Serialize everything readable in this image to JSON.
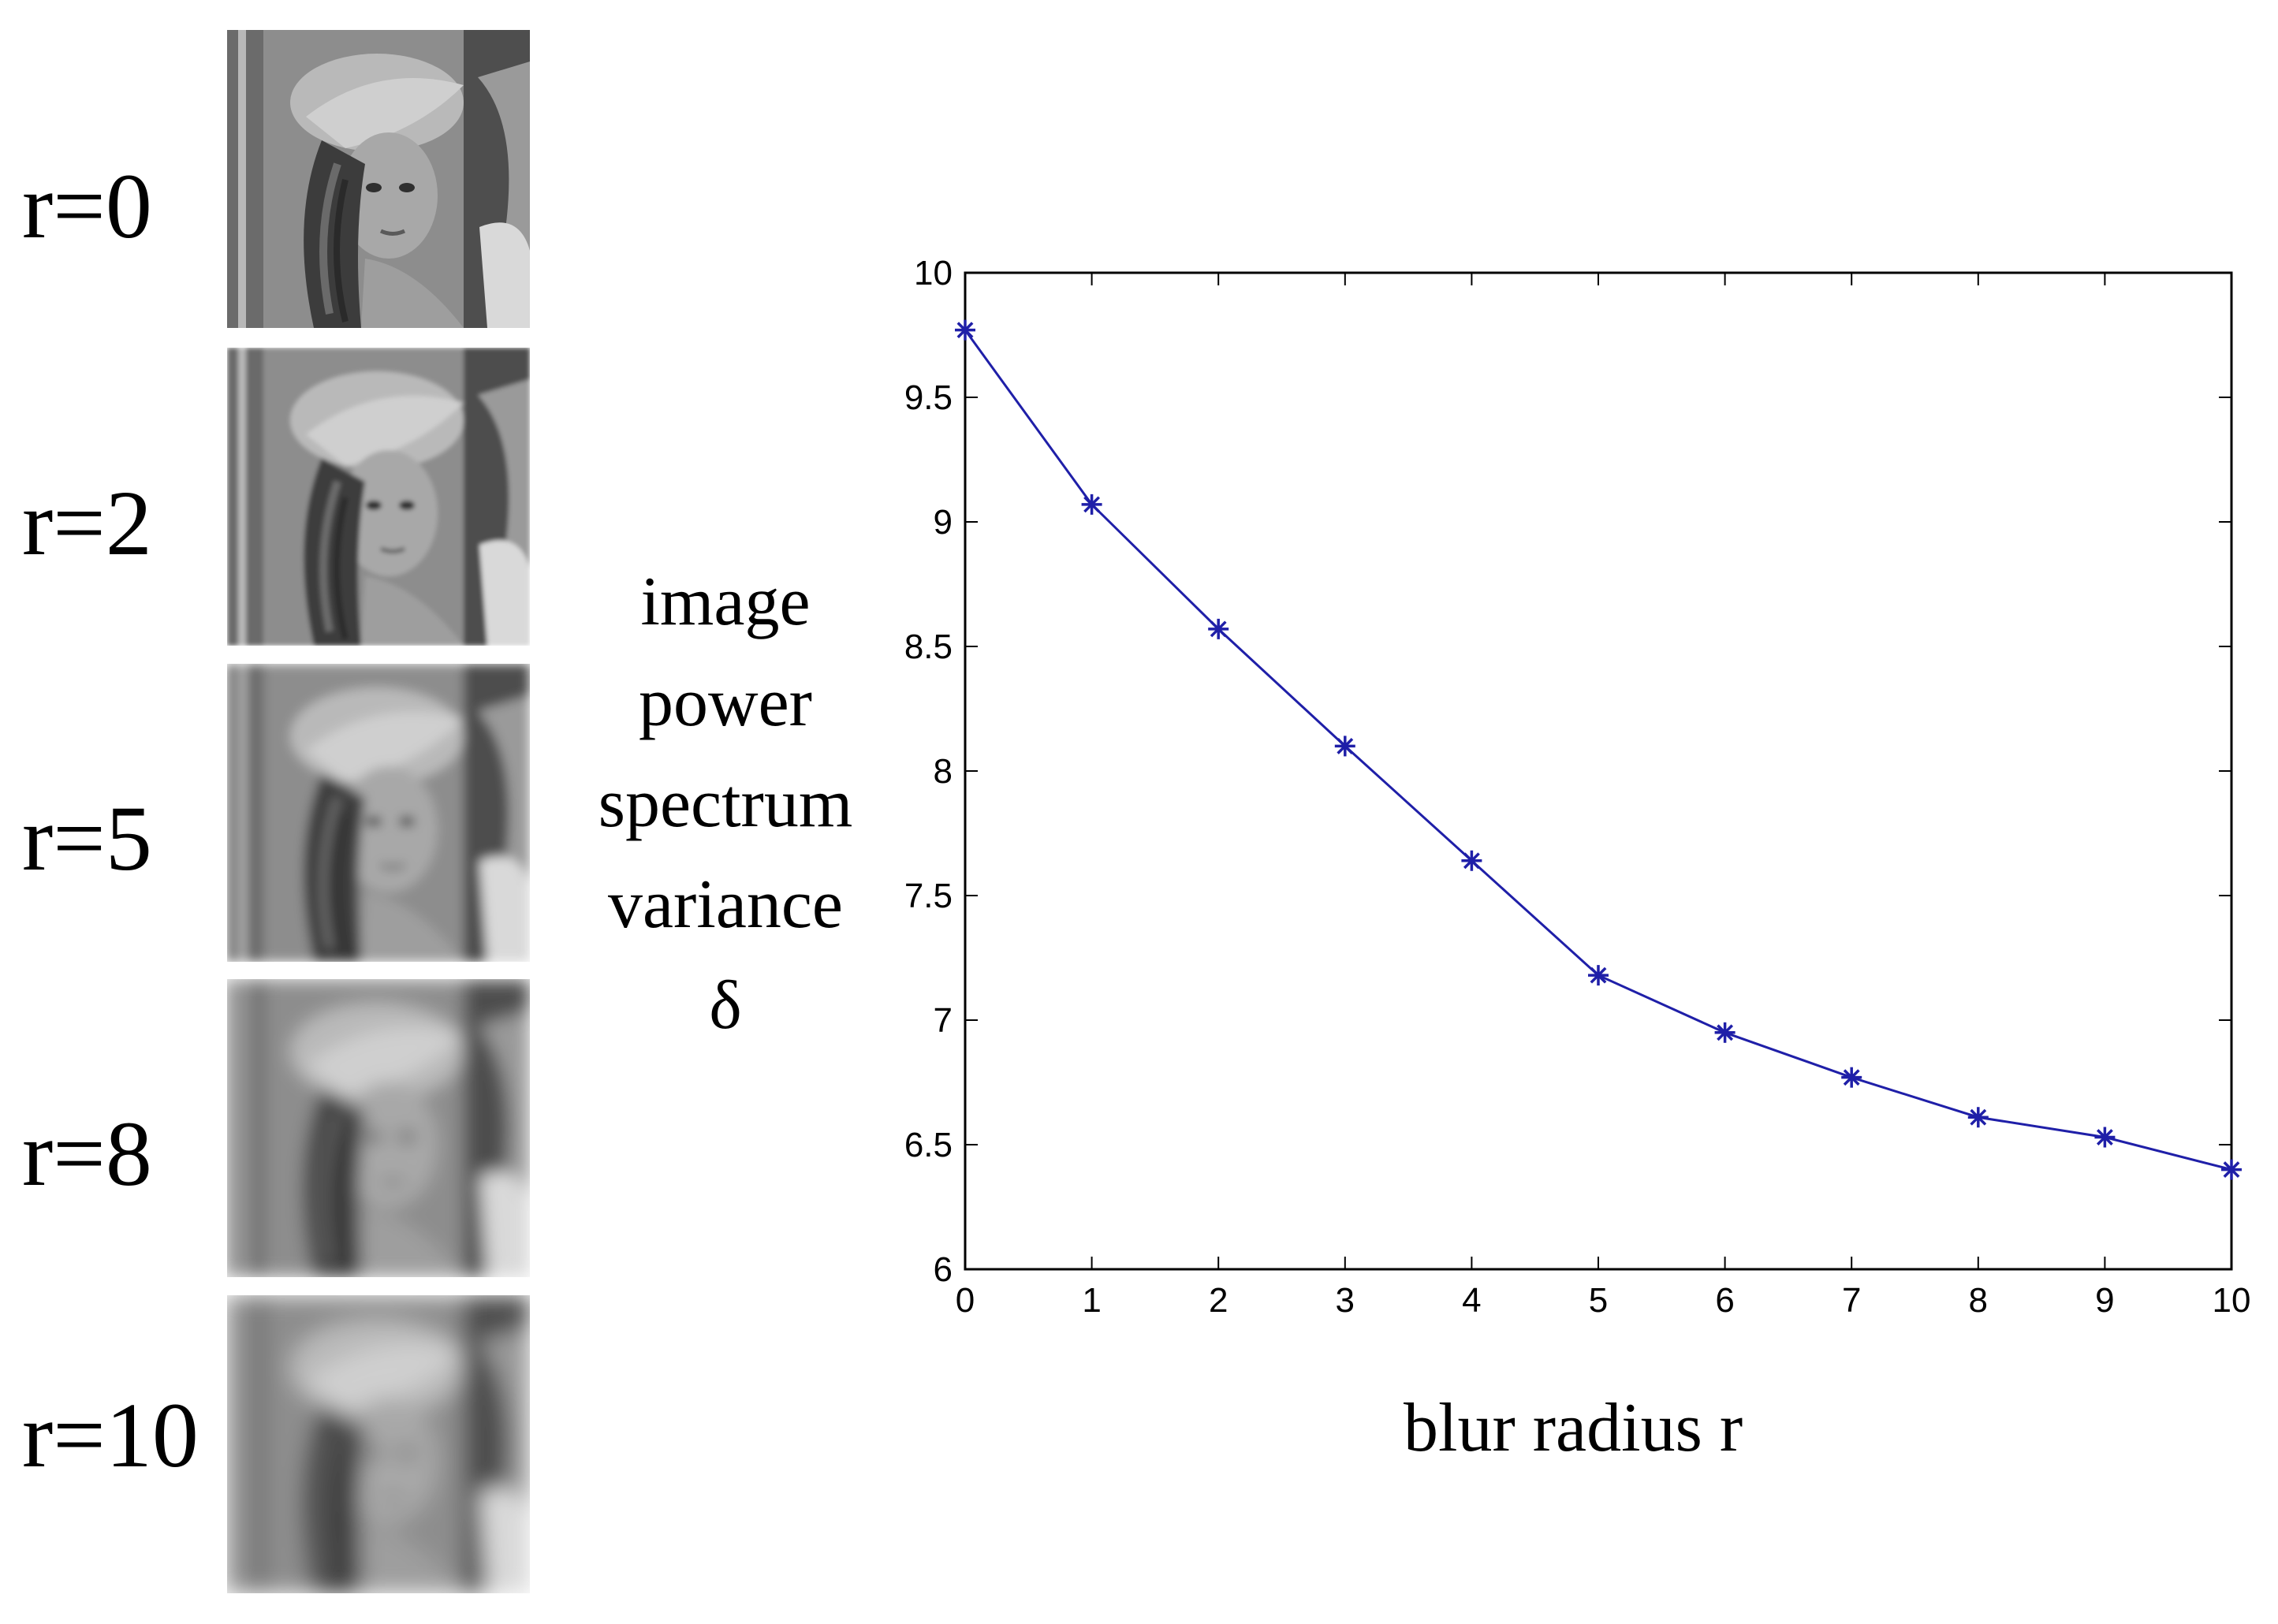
{
  "panels": [
    {
      "label": "r=0",
      "blur": 0
    },
    {
      "label": "r=2",
      "blur": 2
    },
    {
      "label": "r=5",
      "blur": 5
    },
    {
      "label": "r=8",
      "blur": 8
    },
    {
      "label": "r=10",
      "blur": 10
    }
  ],
  "ylabel_lines": [
    "image",
    "power",
    "spectrum",
    "variance",
    "δ"
  ],
  "chart_data": {
    "type": "line",
    "xlabel": "blur radius r",
    "ylabel": "image power spectrum variance δ",
    "xlim": [
      0,
      10
    ],
    "ylim": [
      6,
      10
    ],
    "xticks": [
      0,
      1,
      2,
      3,
      4,
      5,
      6,
      7,
      8,
      9,
      10
    ],
    "yticks": [
      6,
      6.5,
      7,
      7.5,
      8,
      8.5,
      9,
      9.5,
      10
    ],
    "ytick_labels": [
      "6",
      "6.5",
      "7",
      "7.5",
      "8",
      "8.5",
      "9",
      "9.5",
      "10"
    ],
    "grid": false,
    "series": [
      {
        "x": [
          0,
          1,
          2,
          3,
          4,
          5,
          6,
          7,
          8,
          9,
          10
        ],
        "values": [
          9.77,
          9.07,
          8.57,
          8.1,
          7.64,
          7.18,
          6.95,
          6.77,
          6.61,
          6.53,
          6.4
        ],
        "color": "#1f1fa8",
        "marker": "asterisk"
      }
    ]
  }
}
